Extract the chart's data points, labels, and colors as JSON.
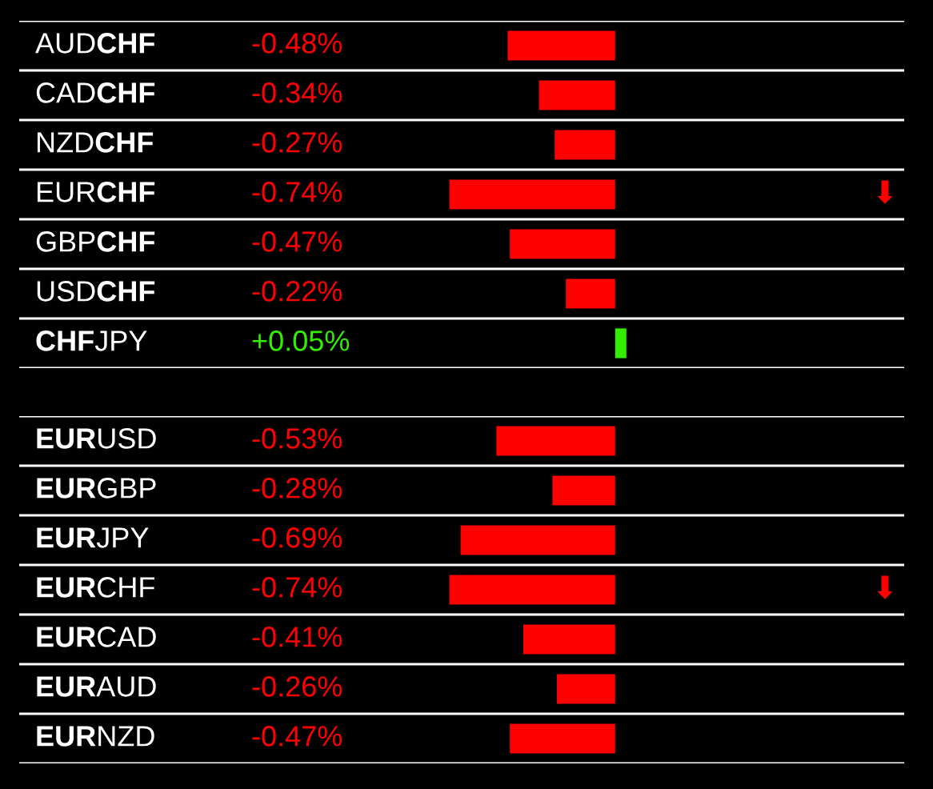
{
  "chart_data": [
    {
      "type": "bar",
      "orientation": "horizontal",
      "categories": [
        "AUDCHF",
        "CADCHF",
        "NZDCHF",
        "EURCHF",
        "GBPCHF",
        "USDCHF",
        "CHFJPY"
      ],
      "values": [
        -0.48,
        -0.34,
        -0.27,
        -0.74,
        -0.47,
        -0.22,
        0.05
      ],
      "colors": [
        "#ff0000",
        "#ff0000",
        "#ff0000",
        "#ff0000",
        "#ff0000",
        "#ff0000",
        "#33ee00"
      ],
      "value_labels": [
        "-0.48%",
        "-0.34%",
        "-0.27%",
        "-0.74%",
        "-0.47%",
        "-0.22%",
        "+0.05%"
      ],
      "xlim": [
        -2.66,
        1.29
      ],
      "grid": true,
      "annotations": [
        "⬇"
      ]
    },
    {
      "type": "bar",
      "orientation": "horizontal",
      "categories": [
        "EURUSD",
        "EURGBP",
        "EURJPY",
        "EURCHF",
        "EURCAD",
        "EURAUD",
        "EURNZD"
      ],
      "values": [
        -0.53,
        -0.28,
        -0.69,
        -0.74,
        -0.41,
        -0.26,
        -0.47
      ],
      "colors": [
        "#ff0000",
        "#ff0000",
        "#ff0000",
        "#ff0000",
        "#ff0000",
        "#ff0000",
        "#ff0000"
      ],
      "value_labels": [
        "-0.53%",
        "-0.28%",
        "-0.69%",
        "-0.74%",
        "-0.41%",
        "-0.26%",
        "-0.47%"
      ],
      "xlim": [
        -2.66,
        1.29
      ],
      "grid": true,
      "annotations": [
        "⬇"
      ]
    }
  ]
}
